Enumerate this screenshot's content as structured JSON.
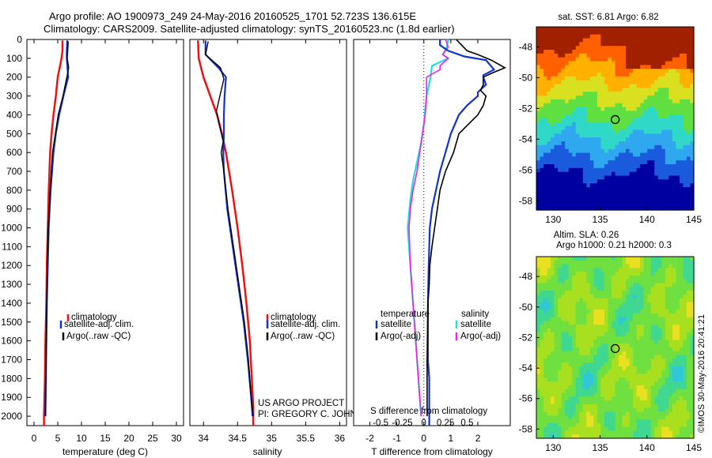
{
  "title": {
    "line1": "Argo profile: AO 1900973_249 24-May-2016 20160525_1701 52.723S 136.615E",
    "line2": "Climatology: CARS2009. Satellite-adjusted climatology: synTS_20160523.nc (1.8d earlier)"
  },
  "colors": {
    "clim": "#ee1111",
    "sat": "#1133cc",
    "argo": "#000000",
    "sat_s": "#22dddd",
    "argo_s": "#ee22ee"
  },
  "credits": {
    "line1": "US ARGO PROJECT",
    "line2": "PI: GREGORY C. JOHNSON"
  },
  "watermark": "©IMOS 30-May-2016 20:41:21",
  "chart_data": [
    {
      "id": "temperature",
      "type": "line",
      "xlabel": "temperature (deg C)",
      "ylabel": "",
      "xlim": [
        -1.5,
        31.5
      ],
      "ylim": [
        2050,
        0
      ],
      "xticks": [
        0,
        5,
        10,
        15,
        20,
        25,
        30
      ],
      "yticks": [
        0,
        100,
        200,
        300,
        400,
        500,
        600,
        700,
        800,
        900,
        1000,
        1100,
        1200,
        1300,
        1400,
        1500,
        1600,
        1700,
        1800,
        1900,
        2000
      ],
      "legend": [
        "climatology",
        "satellite-adj. clim.",
        "Argo(..raw -QC)"
      ],
      "series": [
        {
          "name": "climatology",
          "color": "clim",
          "points": [
            [
              6.0,
              5
            ],
            [
              6.0,
              60
            ],
            [
              5.8,
              100
            ],
            [
              5.0,
              200
            ],
            [
              4.6,
              300
            ],
            [
              4.1,
              400
            ],
            [
              3.7,
              500
            ],
            [
              3.4,
              600
            ],
            [
              3.1,
              800
            ],
            [
              2.9,
              1000
            ],
            [
              2.7,
              1200
            ],
            [
              2.6,
              1400
            ],
            [
              2.4,
              1600
            ],
            [
              2.3,
              1800
            ],
            [
              2.1,
              2000
            ],
            [
              2.1,
              2050
            ]
          ]
        },
        {
          "name": "satellite-adj. clim.",
          "color": "sat",
          "points": [
            [
              7.0,
              5
            ],
            [
              6.9,
              60
            ],
            [
              6.9,
              100
            ],
            [
              7.2,
              200
            ],
            [
              6.2,
              300
            ],
            [
              5.3,
              400
            ],
            [
              4.6,
              500
            ],
            [
              4.1,
              600
            ],
            [
              3.5,
              800
            ],
            [
              3.1,
              1000
            ],
            [
              2.9,
              1200
            ],
            [
              2.7,
              1400
            ],
            [
              2.6,
              1600
            ],
            [
              2.5,
              1800
            ],
            [
              2.4,
              2000
            ]
          ]
        },
        {
          "name": "Argo(..raw -QC)",
          "color": "argo",
          "points": [
            [
              7.2,
              10
            ],
            [
              7.1,
              60
            ],
            [
              7.0,
              100
            ],
            [
              7.3,
              150
            ],
            [
              7.0,
              190
            ],
            [
              6.1,
              300
            ],
            [
              5.1,
              400
            ],
            [
              4.5,
              500
            ],
            [
              3.9,
              600
            ],
            [
              3.4,
              800
            ],
            [
              3.0,
              1000
            ],
            [
              2.8,
              1200
            ],
            [
              2.7,
              1400
            ],
            [
              2.6,
              1600
            ],
            [
              2.5,
              1800
            ],
            [
              2.4,
              2000
            ]
          ]
        }
      ]
    },
    {
      "id": "salinity",
      "type": "line",
      "xlabel": "salinity",
      "ylabel": "",
      "xlim": [
        33.8,
        36.1
      ],
      "ylim": [
        2050,
        0
      ],
      "xticks": [
        34,
        34.5,
        35,
        35.5,
        36
      ],
      "legend": [
        "climatology",
        "satellite-adj. clim.",
        "Argo(..raw -QC)"
      ],
      "series": [
        {
          "name": "climatology",
          "color": "clim",
          "points": [
            [
              33.92,
              5
            ],
            [
              33.93,
              100
            ],
            [
              34.0,
              200
            ],
            [
              34.1,
              300
            ],
            [
              34.2,
              400
            ],
            [
              34.27,
              500
            ],
            [
              34.33,
              600
            ],
            [
              34.42,
              800
            ],
            [
              34.5,
              1000
            ],
            [
              34.57,
              1200
            ],
            [
              34.63,
              1400
            ],
            [
              34.68,
              1600
            ],
            [
              34.71,
              1800
            ],
            [
              34.73,
              1950
            ],
            [
              34.73,
              2050
            ]
          ]
        },
        {
          "name": "satellite-adj. clim.",
          "color": "sat",
          "points": [
            [
              34.03,
              5
            ],
            [
              34.03,
              80
            ],
            [
              34.22,
              150
            ],
            [
              34.33,
              200
            ],
            [
              34.31,
              300
            ],
            [
              34.3,
              400
            ],
            [
              34.3,
              500
            ],
            [
              34.29,
              600
            ],
            [
              34.3,
              700
            ],
            [
              34.35,
              900
            ],
            [
              34.43,
              1100
            ],
            [
              34.51,
              1300
            ],
            [
              34.59,
              1500
            ],
            [
              34.65,
              1700
            ],
            [
              34.7,
              1900
            ],
            [
              34.72,
              2000
            ]
          ]
        },
        {
          "name": "Argo(..raw -QC)",
          "color": "argo",
          "points": [
            [
              34.07,
              10
            ],
            [
              34.03,
              80
            ],
            [
              34.25,
              150
            ],
            [
              34.3,
              210
            ],
            [
              34.24,
              300
            ],
            [
              34.19,
              380
            ],
            [
              34.23,
              450
            ],
            [
              34.29,
              540
            ],
            [
              34.26,
              600
            ],
            [
              34.3,
              700
            ],
            [
              34.36,
              900
            ],
            [
              34.44,
              1100
            ],
            [
              34.52,
              1300
            ],
            [
              34.6,
              1500
            ],
            [
              34.66,
              1700
            ],
            [
              34.7,
              1900
            ],
            [
              34.73,
              2000
            ]
          ]
        }
      ]
    },
    {
      "id": "difference",
      "type": "line",
      "xlabel": "T difference from climatology",
      "x2label": "S difference from climatology",
      "xlim": [
        -2.6,
        3.2
      ],
      "ylim": [
        2050,
        0
      ],
      "xticks": [
        -2,
        -1,
        0,
        1,
        2
      ],
      "sticks": [
        {
          "pos": -1.6,
          "label": "-0.5"
        },
        {
          "pos": -0.8,
          "label": "-0.25"
        },
        {
          "pos": 0,
          "label": "0"
        },
        {
          "pos": 0.8,
          "label": "0.25"
        },
        {
          "pos": 1.6,
          "label": "0.5"
        }
      ],
      "legend_titles": [
        "temperature",
        "salinity"
      ],
      "legend_t": [
        "satellite",
        "Argo(-adj)"
      ],
      "legend_s": [
        "satellite",
        "Argo(-adj)"
      ],
      "series": [
        {
          "name": "T satellite",
          "color": "sat",
          "points": [
            [
              0.6,
              0
            ],
            [
              0.6,
              30
            ],
            [
              0.9,
              60
            ],
            [
              1.5,
              90
            ],
            [
              2.3,
              110
            ],
            [
              2.6,
              160
            ],
            [
              2.2,
              190
            ],
            [
              2.2,
              200
            ],
            [
              2.3,
              240
            ],
            [
              2.0,
              280
            ],
            [
              2.0,
              300
            ],
            [
              1.6,
              350
            ],
            [
              1.3,
              400
            ],
            [
              1.0,
              500
            ],
            [
              0.8,
              600
            ],
            [
              0.6,
              700
            ],
            [
              0.45,
              800
            ],
            [
              0.3,
              900
            ],
            [
              0.22,
              1000
            ],
            [
              0.2,
              1100
            ],
            [
              0.18,
              1200
            ],
            [
              0.15,
              1400
            ],
            [
              0.15,
              1700
            ],
            [
              0.2,
              1800
            ],
            [
              0.2,
              2050
            ]
          ]
        },
        {
          "name": "T Argo",
          "color": "argo",
          "points": [
            [
              1.2,
              0
            ],
            [
              1.4,
              30
            ],
            [
              1.6,
              60
            ],
            [
              2.0,
              80
            ],
            [
              2.5,
              110
            ],
            [
              3.0,
              150
            ],
            [
              2.5,
              180
            ],
            [
              2.2,
              200
            ],
            [
              2.2,
              240
            ],
            [
              2.1,
              270
            ],
            [
              2.3,
              300
            ],
            [
              2.2,
              350
            ],
            [
              2.0,
              400
            ],
            [
              1.3,
              500
            ],
            [
              1.1,
              600
            ],
            [
              0.8,
              700
            ],
            [
              0.6,
              800
            ],
            [
              0.5,
              900
            ],
            [
              0.4,
              1000
            ],
            [
              0.3,
              1100
            ],
            [
              0.22,
              1200
            ],
            [
              0.2,
              1300
            ],
            [
              0.15,
              1400
            ],
            [
              0.12,
              1700
            ],
            [
              0.12,
              2000
            ]
          ]
        },
        {
          "name": "S satellite",
          "color": "sat_s",
          "points": [
            [
              0.9,
              0
            ],
            [
              0.85,
              40
            ],
            [
              0.7,
              80
            ],
            [
              0.9,
              100
            ],
            [
              0.3,
              140
            ],
            [
              0.25,
              200
            ],
            [
              0.1,
              300
            ],
            [
              0.0,
              450
            ],
            [
              -0.1,
              550
            ],
            [
              -0.25,
              650
            ],
            [
              -0.4,
              750
            ],
            [
              -0.5,
              850
            ],
            [
              -0.6,
              1000
            ],
            [
              -0.5,
              1200
            ],
            [
              -0.4,
              1400
            ],
            [
              -0.3,
              1600
            ],
            [
              -0.2,
              1800
            ],
            [
              -0.1,
              2000
            ]
          ]
        },
        {
          "name": "S Argo",
          "color": "argo_s",
          "points": [
            [
              0.8,
              0
            ],
            [
              0.9,
              40
            ],
            [
              0.7,
              80
            ],
            [
              0.9,
              100
            ],
            [
              0.6,
              140
            ],
            [
              0.6,
              160
            ],
            [
              0.1,
              200
            ],
            [
              0.1,
              300
            ],
            [
              0.05,
              400
            ],
            [
              -0.05,
              500
            ],
            [
              -0.15,
              600
            ],
            [
              -0.25,
              700
            ],
            [
              -0.4,
              800
            ],
            [
              -0.5,
              900
            ],
            [
              -0.55,
              1000
            ],
            [
              -0.5,
              1200
            ],
            [
              -0.4,
              1400
            ],
            [
              -0.3,
              1600
            ],
            [
              -0.2,
              1800
            ],
            [
              -0.1,
              2000
            ]
          ]
        }
      ]
    },
    {
      "id": "sst-map",
      "type": "heatmap",
      "title": "sat. SST: 6.81  Argo: 6.82",
      "xlim": [
        128.2,
        145
      ],
      "ylim": [
        -58.6,
        -46.7
      ],
      "xticks": [
        130,
        135,
        140,
        145
      ],
      "yticks": [
        -48,
        -50,
        -52,
        -54,
        -56,
        -58
      ],
      "marker": {
        "lon": 136.615,
        "lat": -52.723
      },
      "colormap": [
        "#0000a0",
        "#1a5adc",
        "#30a8f0",
        "#30d8c8",
        "#60e040",
        "#d8e020",
        "#ffb000",
        "#ff6000",
        "#a02000"
      ]
    },
    {
      "id": "sla-map",
      "type": "heatmap",
      "title_line1": "Altim. SLA: 0.26",
      "title_line2": "Argo h1000: 0.21 h2000: 0.3",
      "xlim": [
        128.2,
        145
      ],
      "ylim": [
        -58.6,
        -46.7
      ],
      "xticks": [
        130,
        135,
        140,
        145
      ],
      "yticks": [
        -48,
        -50,
        -52,
        -54,
        -56,
        -58
      ],
      "marker": {
        "lon": 136.615,
        "lat": -52.723
      },
      "colormap": [
        "#30c8d8",
        "#40d890",
        "#70e040",
        "#a8e020",
        "#e8e020",
        "#ffb030"
      ]
    }
  ]
}
